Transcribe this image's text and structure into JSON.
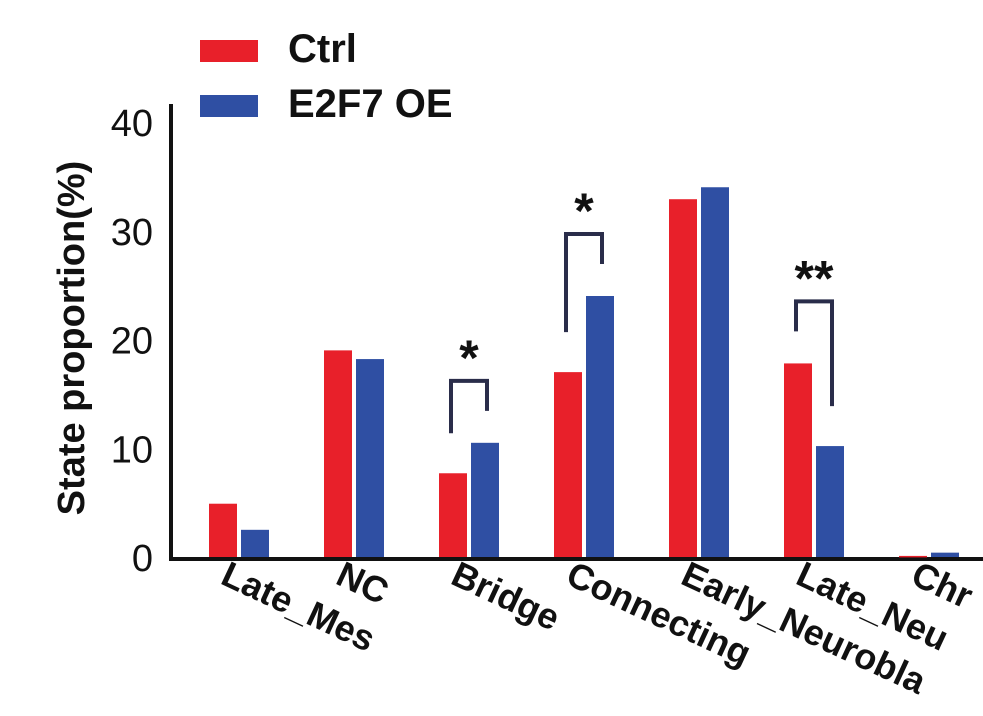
{
  "chart_data": {
    "type": "bar",
    "categories": [
      "Late_Mes",
      "NC",
      "Bridge",
      "Connecting",
      "Early_Neuroblast",
      "Late_Neuroblast",
      "Chromaffin"
    ],
    "category_labels_visible": [
      "Late_Mes",
      "NC",
      "Bridge",
      "Connecting",
      "Early_Neurobla",
      "Late_Neu",
      "Chr"
    ],
    "series": [
      {
        "name": "Ctrl",
        "color": "#e8202a",
        "values": [
          4.9,
          19.0,
          7.7,
          17.0,
          32.9,
          17.8,
          0.1
        ]
      },
      {
        "name": "E2F7 OE",
        "color": "#2f4fa3",
        "values": [
          2.5,
          18.2,
          10.5,
          24.0,
          34.0,
          10.2,
          0.4
        ]
      }
    ],
    "xlabel": "",
    "ylabel": "State proportion(%)",
    "ylim": [
      0,
      40
    ],
    "yticks": [
      0,
      10,
      20,
      30,
      40
    ],
    "grid": false,
    "legend_position": "top-left",
    "significance": [
      {
        "category": "Bridge",
        "label": "*"
      },
      {
        "category": "Connecting",
        "label": "*"
      },
      {
        "category": "Late_Neuroblast",
        "label": "**"
      }
    ]
  }
}
